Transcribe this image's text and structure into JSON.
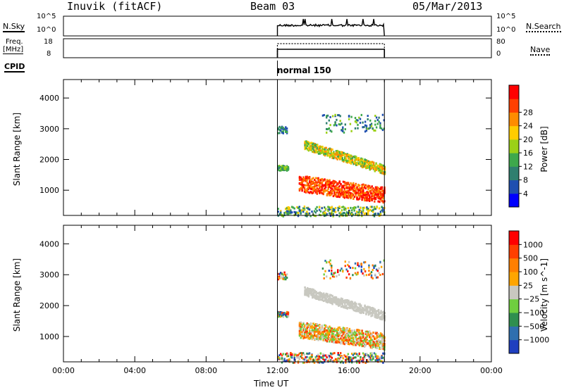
{
  "header": {
    "station": "Inuvik (fitACF)",
    "beam": "Beam 03",
    "date": "05/Mar/2013"
  },
  "mini_panels": {
    "nsky_label": "N.Sky",
    "nsearch_label": "N.Search",
    "nsky_ticks": [
      "10^5",
      "10^0"
    ],
    "nsearch_ticks": [
      "10^5",
      "10^0"
    ],
    "freq_label": "Freq.",
    "freq_unit": "[MHz]",
    "freq_ticks": [
      "18",
      "8"
    ],
    "nave_label": "Nave",
    "nave_ticks": [
      "80",
      "0"
    ],
    "cpid_label": "CPID",
    "cpid_mode": "normal 150"
  },
  "chart_data": [
    {
      "type": "heatmap",
      "name": "power",
      "ylabel": "Slant Range [km]",
      "yticks": [
        1000,
        2000,
        3000,
        4000
      ],
      "ylim": [
        180,
        4600
      ],
      "xlim": [
        0,
        24
      ],
      "colorbar_label": "Power [dB]",
      "colorbar_ticks": [
        4,
        8,
        12,
        16,
        20,
        24,
        28
      ],
      "colors": [
        "#0000ff",
        "#1f4fb0",
        "#2f7f6f",
        "#3ea84c",
        "#9bd017",
        "#ffcc00",
        "#ff8c00",
        "#ff4000",
        "#ff0000"
      ]
    },
    {
      "type": "heatmap",
      "name": "velocity",
      "ylabel": "Slant Range [km]",
      "yticks": [
        1000,
        2000,
        3000,
        4000
      ],
      "ylim": [
        180,
        4600
      ],
      "xlim": [
        0,
        24
      ],
      "colorbar_label": "Velocity [m s^-1]",
      "colorbar_ticks": [
        "1000",
        "500",
        "100",
        "25",
        "−25",
        "−100",
        "−500",
        "−1000"
      ],
      "colors": [
        "#1f3fbf",
        "#2f6faf",
        "#2f8f4f",
        "#6fcf3f",
        "#c8c8c0",
        "#ffa500",
        "#ff7f00",
        "#ff3f00",
        "#ff0000"
      ]
    }
  ],
  "xaxis": {
    "label": "Time UT",
    "ticks": [
      "00:00",
      "04:00",
      "08:00",
      "12:00",
      "16:00",
      "20:00",
      "00:00"
    ]
  }
}
